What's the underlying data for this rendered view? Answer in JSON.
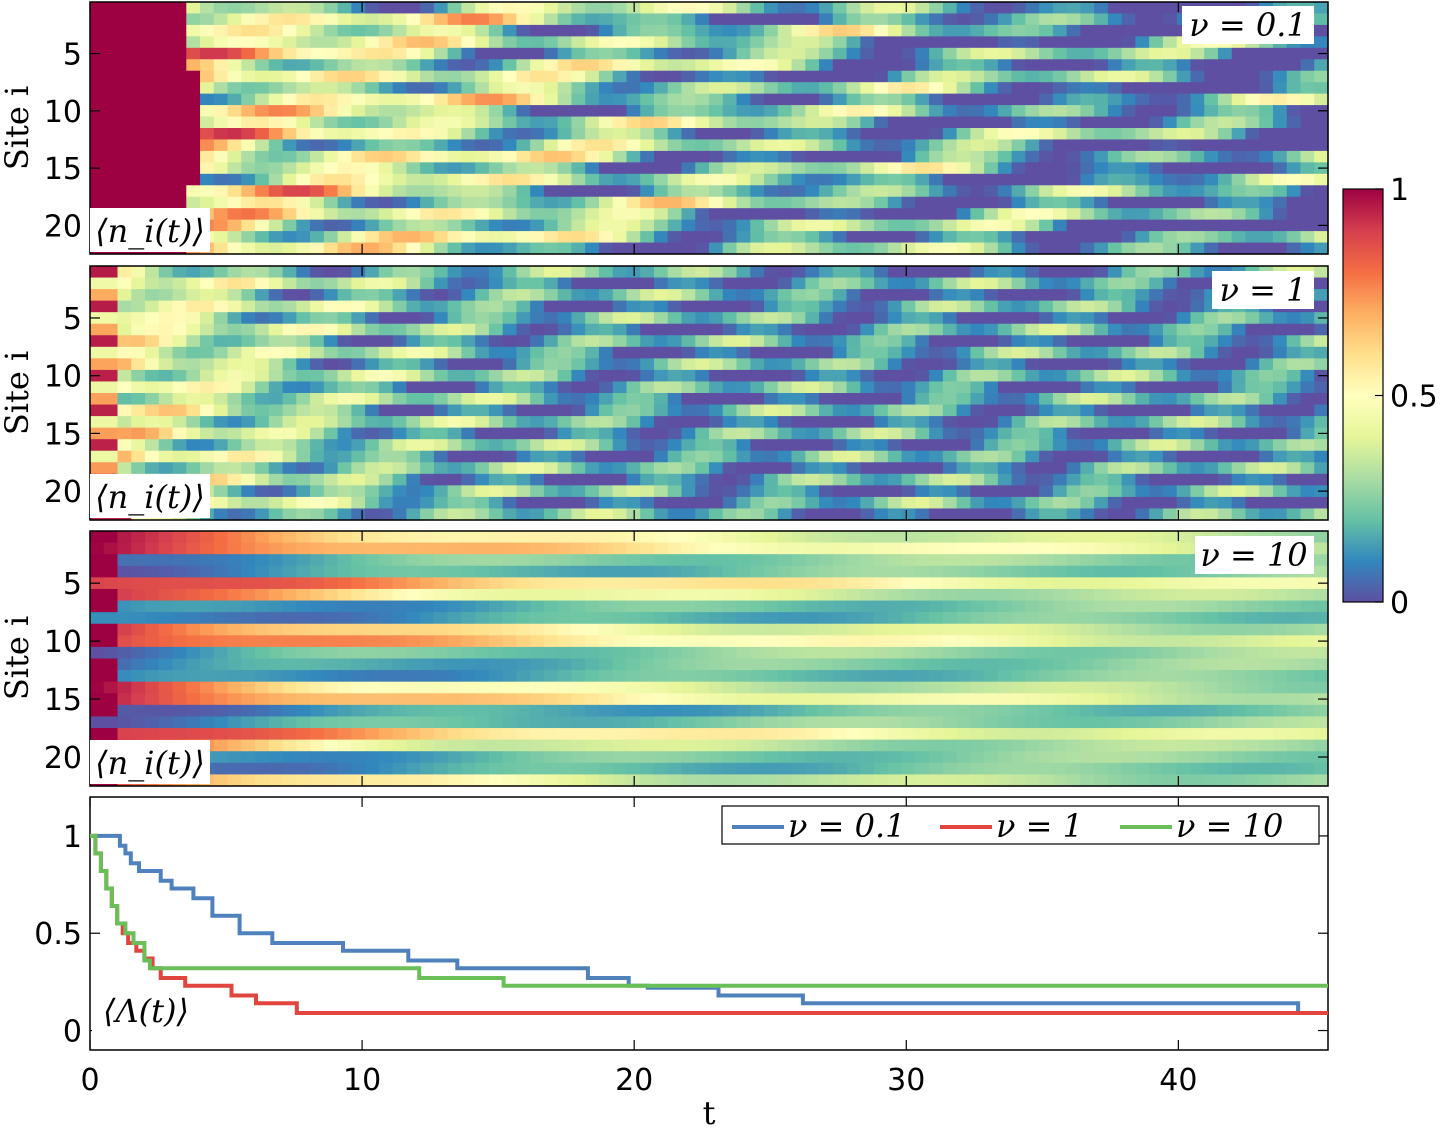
{
  "chart_data": [
    {
      "type": "heatmap",
      "panel_tag": "ν = 0.1",
      "observable_label": "⟨n_i(t)⟩",
      "ylabel": "Site i",
      "yticks": [
        5,
        10,
        15,
        20
      ],
      "ylim": [
        1,
        22
      ],
      "xlim": [
        0,
        45.5
      ],
      "xticks": [
        0,
        10,
        20,
        30,
        40
      ],
      "n_sites": 22,
      "t_max": 45.5,
      "colormap": "Spectral_r",
      "clim": [
        0,
        1
      ]
    },
    {
      "type": "heatmap",
      "panel_tag": "ν = 1",
      "observable_label": "⟨n_i(t)⟩",
      "ylabel": "Site i",
      "yticks": [
        5,
        10,
        15,
        20
      ],
      "ylim": [
        1,
        22
      ],
      "xlim": [
        0,
        45.5
      ],
      "xticks": [
        0,
        10,
        20,
        30,
        40
      ],
      "n_sites": 22,
      "t_max": 45.5,
      "colormap": "Spectral_r",
      "clim": [
        0,
        1
      ]
    },
    {
      "type": "heatmap",
      "panel_tag": "ν = 10",
      "observable_label": "⟨n_i(t)⟩",
      "ylabel": "Site i",
      "yticks": [
        5,
        10,
        15,
        20
      ],
      "ylim": [
        1,
        22
      ],
      "xlim": [
        0,
        45.5
      ],
      "xticks": [
        0,
        10,
        20,
        30,
        40
      ],
      "n_sites": 22,
      "t_max": 45.5,
      "colormap": "Spectral_r",
      "clim": [
        0,
        1
      ]
    },
    {
      "type": "line",
      "observable_label": "⟨Λ(t)⟩",
      "xlabel": "t",
      "ylabel": "",
      "xlim": [
        0,
        45.5
      ],
      "ylim": [
        -0.1,
        1.2
      ],
      "xticks": [
        0,
        10,
        20,
        30,
        40
      ],
      "yticks": [
        0,
        0.5,
        1
      ],
      "xtick_labels": [
        "0",
        "10",
        "20",
        "30",
        "40"
      ],
      "ytick_labels": [
        "0",
        "0.5",
        "1"
      ],
      "legend_position": "top-right",
      "series": [
        {
          "name": "ν = 0.1",
          "color": "#4f81bd",
          "step": true,
          "x": [
            0,
            1.1,
            1.3,
            1.5,
            1.8,
            2.6,
            3,
            3.8,
            4.5,
            5.5,
            6.7,
            9.3,
            11.7,
            13.5,
            18.3,
            19.8,
            20.5,
            23.1,
            26.2,
            44.4
          ],
          "y": [
            1.0,
            0.95,
            0.91,
            0.86,
            0.82,
            0.77,
            0.73,
            0.68,
            0.59,
            0.5,
            0.45,
            0.41,
            0.36,
            0.32,
            0.27,
            0.23,
            0.22,
            0.18,
            0.14,
            0.1
          ]
        },
        {
          "name": "ν = 1",
          "color": "#e0453e",
          "step": true,
          "x": [
            0,
            0.2,
            0.4,
            0.6,
            0.8,
            1.0,
            1.2,
            1.4,
            1.7,
            2.0,
            2.3,
            2.6,
            3.5,
            5.2,
            6.1,
            7.6,
            10.2,
            45.5
          ],
          "y": [
            1.0,
            0.91,
            0.82,
            0.73,
            0.64,
            0.55,
            0.5,
            0.45,
            0.41,
            0.37,
            0.32,
            0.27,
            0.23,
            0.18,
            0.14,
            0.09,
            0.09,
            0.09
          ]
        },
        {
          "name": "ν = 10",
          "color": "#6abf59",
          "step": true,
          "x": [
            0,
            0.2,
            0.4,
            0.6,
            0.8,
            1.0,
            1.3,
            1.6,
            2.0,
            2.2,
            12.1,
            15.2,
            45.5
          ],
          "y": [
            1.0,
            0.91,
            0.82,
            0.73,
            0.64,
            0.55,
            0.5,
            0.45,
            0.36,
            0.32,
            0.27,
            0.23,
            0.23
          ]
        }
      ]
    }
  ],
  "colorbar": {
    "ticks": [
      0,
      0.5,
      1
    ],
    "tick_labels": [
      "0",
      "0.5",
      "1"
    ]
  }
}
